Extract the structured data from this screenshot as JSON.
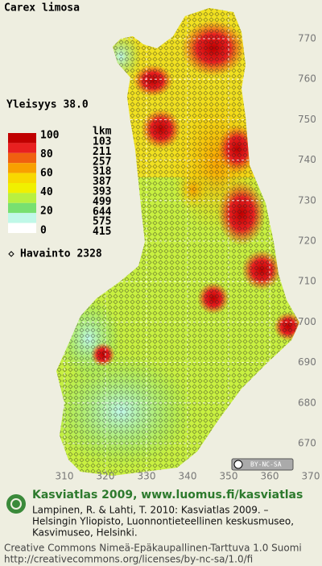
{
  "title": "Carex limosa",
  "frequency": "Yleisyys  38.0",
  "legend": {
    "scale_labels": [
      100,
      80,
      60,
      40,
      20,
      0
    ],
    "count_header": "lkm",
    "counts": [
      103,
      211,
      257,
      318,
      387,
      393,
      499,
      644,
      575,
      415
    ],
    "colors": [
      "#c00000",
      "#e82020",
      "#f06010",
      "#f8a000",
      "#f8d800",
      "#f0f000",
      "#b8f040",
      "#78e070",
      "#c0f8e8",
      "#ffffff"
    ]
  },
  "observations": "Havainto 2328",
  "grid": {
    "y_labels": [
      770,
      760,
      750,
      740,
      730,
      720,
      710,
      700,
      690,
      680,
      670
    ],
    "x_labels": [
      310,
      320,
      330,
      340,
      350,
      360,
      370
    ]
  },
  "license_badge": "BY-NC-SA",
  "footer": {
    "heading": "Kasviatlas 2009, www.luomus.fi/kasviatlas",
    "citation": [
      "Lampinen, R. & Lahti, T. 2010: Kasviatlas 2009. –",
      "Helsingin Yliopisto, Luonnontieteellinen keskusmuseo,",
      "Kasvimuseo, Helsinki."
    ],
    "license": [
      "Creative Commons Nimeä-Epäkaupallinen-Tarttuva 1.0 Suomi",
      "http://creativecommons.org/licenses/by-nc-sa/1.0/fi"
    ]
  }
}
